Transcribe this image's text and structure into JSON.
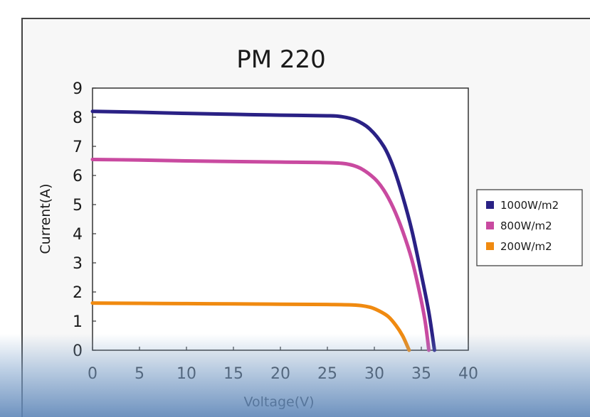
{
  "colors": {
    "series_1000": "#2a2185",
    "series_800": "#c94aa0",
    "series_200": "#f08a10",
    "plot_border": "#333333"
  },
  "chart_data": {
    "type": "line",
    "title": "PM 220",
    "xlabel": "Voltage(V)",
    "ylabel": "Current(A)",
    "xlim": [
      0,
      40
    ],
    "ylim": [
      0,
      9
    ],
    "xticks": [
      0,
      5,
      10,
      15,
      20,
      25,
      30,
      35,
      40
    ],
    "yticks": [
      0,
      1,
      2,
      3,
      4,
      5,
      6,
      7,
      8,
      9
    ],
    "grid": false,
    "legend_position": "right",
    "series": [
      {
        "name": "1000W/m2",
        "color": "#2a2185",
        "points": [
          [
            0,
            8.2
          ],
          [
            5,
            8.17
          ],
          [
            10,
            8.13
          ],
          [
            15,
            8.1
          ],
          [
            20,
            8.07
          ],
          [
            25,
            8.05
          ],
          [
            26.5,
            8.02
          ],
          [
            28,
            7.9
          ],
          [
            29.5,
            7.6
          ],
          [
            31,
            7.0
          ],
          [
            32,
            6.3
          ],
          [
            33,
            5.3
          ],
          [
            34,
            4.1
          ],
          [
            35,
            2.6
          ],
          [
            35.8,
            1.3
          ],
          [
            36.4,
            0
          ]
        ]
      },
      {
        "name": "800W/m2",
        "color": "#c94aa0",
        "points": [
          [
            0,
            6.55
          ],
          [
            5,
            6.53
          ],
          [
            10,
            6.5
          ],
          [
            15,
            6.48
          ],
          [
            20,
            6.46
          ],
          [
            25,
            6.44
          ],
          [
            27,
            6.4
          ],
          [
            28.5,
            6.25
          ],
          [
            30,
            5.9
          ],
          [
            31,
            5.5
          ],
          [
            32,
            4.9
          ],
          [
            33,
            4.1
          ],
          [
            34,
            3.1
          ],
          [
            34.8,
            2.0
          ],
          [
            35.4,
            1.0
          ],
          [
            35.8,
            0
          ]
        ]
      },
      {
        "name": "200W/m2",
        "color": "#f08a10",
        "points": [
          [
            0,
            1.62
          ],
          [
            5,
            1.61
          ],
          [
            10,
            1.6
          ],
          [
            15,
            1.59
          ],
          [
            20,
            1.58
          ],
          [
            25,
            1.57
          ],
          [
            28,
            1.55
          ],
          [
            29.5,
            1.48
          ],
          [
            30.5,
            1.35
          ],
          [
            31.5,
            1.15
          ],
          [
            32.3,
            0.85
          ],
          [
            33,
            0.5
          ],
          [
            33.5,
            0.15
          ],
          [
            33.7,
            0
          ]
        ]
      }
    ]
  }
}
